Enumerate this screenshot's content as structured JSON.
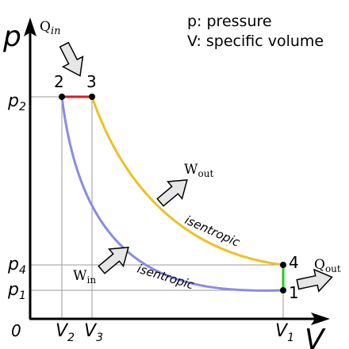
{
  "legend": {
    "pressure": "p: pressure",
    "volume": "V: specific volume"
  },
  "axes": {
    "y_label": "p",
    "x_label": "V",
    "origin": "0"
  },
  "y_ticks": [
    {
      "base": "p",
      "sub": "2"
    },
    {
      "base": "p",
      "sub": "4"
    },
    {
      "base": "p",
      "sub": "1"
    }
  ],
  "x_ticks": [
    {
      "base": "V",
      "sub": "2"
    },
    {
      "base": "V",
      "sub": "3"
    },
    {
      "base": "V",
      "sub": "1"
    }
  ],
  "points": [
    "1",
    "2",
    "3",
    "4"
  ],
  "process_labels": {
    "upper": "isentropic",
    "lower": "isentropic"
  },
  "flows": {
    "q_in": {
      "base": "Q",
      "sub": "in"
    },
    "q_out": {
      "base": "Q",
      "sub": "out"
    },
    "w_out": {
      "base": "W",
      "sub": "out"
    },
    "w_in": {
      "base": "W",
      "sub": "in"
    }
  },
  "colors": {
    "heat_in_process": "#e41a1c",
    "expansion_process": "#f0c020",
    "heat_out_process": "#22cc22",
    "compression_process": "#8a8ae6",
    "axis": "#000000",
    "guide": "#999999"
  }
}
